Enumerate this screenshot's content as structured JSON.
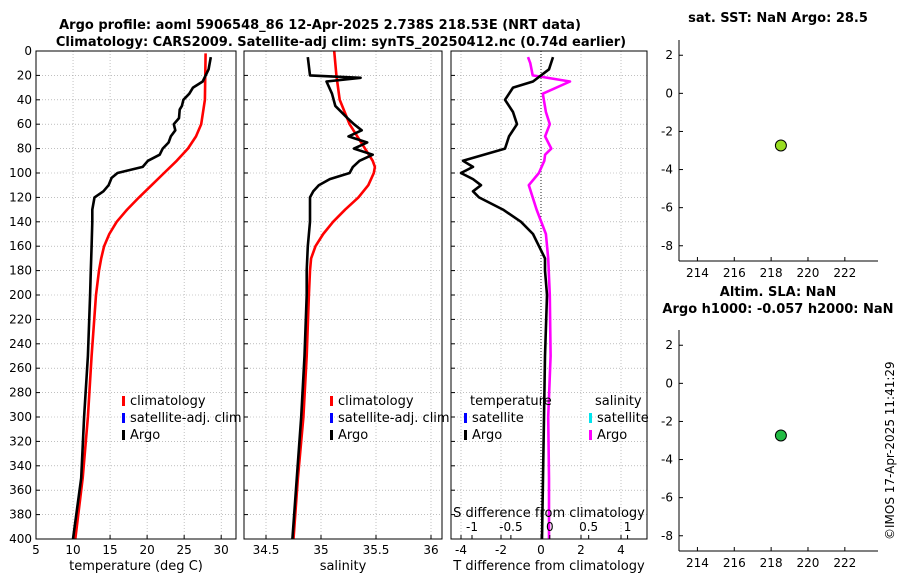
{
  "title": {
    "line1": "Argo profile: aoml 5906548_86 12-Apr-2025 2.738S 218.53E (NRT data)",
    "line2": "Climatology: CARS2009. Satellite-adj clim: synTS_20250412.nc (0.74d earlier)"
  },
  "side_label": "©IMOS 17-Apr-2025 11:41:29",
  "colors": {
    "climatology": "#ff0000",
    "satellite": "#0000ff",
    "argo": "#000000",
    "sal_sat": "#00e5ee",
    "sal_argo": "#ff00ff",
    "dot_sst": "#99dd22",
    "dot_sla": "#22bb44"
  },
  "depth_ticks": [
    "0",
    "20",
    "40",
    "60",
    "80",
    "100",
    "120",
    "140",
    "160",
    "180",
    "200",
    "220",
    "240",
    "260",
    "280",
    "300",
    "320",
    "340",
    "360",
    "380",
    "400"
  ],
  "chart_data": [
    {
      "id": "temperature",
      "type": "line",
      "xlabel": "temperature (deg C)",
      "xlim": [
        5,
        32
      ],
      "ylim": [
        400,
        0
      ],
      "xticks": [
        "5",
        "10",
        "15",
        "20",
        "25",
        "30"
      ],
      "legend": [
        "climatology",
        "satellite-adj. clim",
        "Argo"
      ],
      "series": [
        {
          "name": "climatology",
          "depth": [
            2,
            40,
            60,
            70,
            80,
            90,
            100,
            110,
            120,
            130,
            140,
            150,
            160,
            170,
            180,
            200,
            250,
            300,
            350,
            400
          ],
          "values": [
            27.9,
            27.8,
            27.3,
            26.6,
            25.5,
            24.0,
            22.3,
            20.6,
            18.9,
            17.3,
            15.9,
            14.9,
            14.2,
            13.8,
            13.5,
            13.1,
            12.5,
            12.0,
            11.3,
            10.3
          ]
        },
        {
          "name": "Argo",
          "depth": [
            5,
            15,
            25,
            30,
            35,
            40,
            45,
            48,
            55,
            60,
            65,
            70,
            75,
            80,
            85,
            90,
            95,
            100,
            104,
            110,
            115,
            120,
            130,
            140,
            160,
            180,
            200,
            250,
            300,
            350,
            400
          ],
          "values": [
            28.6,
            28.3,
            27.5,
            26.2,
            25.7,
            24.9,
            24.7,
            24.4,
            24.3,
            23.6,
            23.8,
            23.2,
            22.9,
            22.1,
            21.7,
            20.1,
            19.4,
            16.0,
            15.2,
            14.8,
            14.1,
            12.9,
            12.6,
            12.6,
            12.5,
            12.4,
            12.3,
            12.0,
            11.5,
            11.1,
            10.0
          ]
        }
      ]
    },
    {
      "id": "salinity",
      "type": "line",
      "xlabel": "salinity",
      "xlim": [
        34.3,
        36.1
      ],
      "ylim": [
        400,
        0
      ],
      "xticks": [
        "34.5",
        "35",
        "35.5",
        "36"
      ],
      "legend": [
        "climatology",
        "satellite-adj. clim",
        "Argo"
      ],
      "series": [
        {
          "name": "climatology",
          "depth": [
            0,
            20,
            40,
            60,
            80,
            90,
            95,
            100,
            110,
            120,
            130,
            140,
            150,
            160,
            170,
            180,
            200,
            250,
            300,
            350,
            400
          ],
          "values": [
            35.12,
            35.14,
            35.17,
            35.26,
            35.4,
            35.47,
            35.49,
            35.48,
            35.43,
            35.34,
            35.22,
            35.11,
            35.02,
            34.95,
            34.91,
            34.9,
            34.89,
            34.87,
            34.84,
            34.79,
            34.75
          ]
        },
        {
          "name": "Argo",
          "depth": [
            5,
            20,
            22,
            25,
            35,
            45,
            55,
            60,
            65,
            70,
            75,
            80,
            85,
            90,
            95,
            100,
            105,
            110,
            115,
            120,
            140,
            160,
            180,
            200,
            250,
            300,
            350,
            400
          ],
          "values": [
            34.88,
            34.9,
            35.36,
            35.05,
            35.1,
            35.13,
            35.24,
            35.3,
            35.37,
            35.25,
            35.42,
            35.3,
            35.47,
            35.35,
            35.29,
            35.26,
            35.08,
            34.98,
            34.93,
            34.9,
            34.9,
            34.88,
            34.87,
            34.87,
            34.85,
            34.82,
            34.78,
            34.74
          ]
        }
      ]
    },
    {
      "id": "difference",
      "type": "line",
      "xlabel": "T difference from climatology",
      "x2label": "S difference from climatology",
      "xlim": [
        -4.5,
        5.3
      ],
      "x2lim": [
        -1.27,
        1.25
      ],
      "ylim": [
        400,
        0
      ],
      "xticks": [
        "-4",
        "-2",
        "0",
        "2",
        "4"
      ],
      "x2ticks": [
        "-1",
        "-0.5",
        "0",
        "0.5",
        "1"
      ],
      "legend_T_title": "temperature",
      "legend_S_title": "salinity",
      "legend_T": [
        "satellite",
        "Argo"
      ],
      "legend_S": [
        "satellite",
        "Argo"
      ],
      "series": [
        {
          "name": "T Argo",
          "depth": [
            5,
            15,
            25,
            30,
            40,
            50,
            60,
            70,
            80,
            90,
            95,
            100,
            105,
            110,
            115,
            120,
            130,
            140,
            150,
            160,
            170,
            180,
            200,
            250,
            300,
            350,
            400
          ],
          "values": [
            0.6,
            0.4,
            -0.4,
            -1.4,
            -1.8,
            -1.4,
            -1.2,
            -1.6,
            -1.8,
            -3.9,
            -3.4,
            -4.0,
            -3.4,
            -3.0,
            -3.4,
            -3.1,
            -1.9,
            -1.0,
            -0.4,
            -0.1,
            0.2,
            0.2,
            0.3,
            0.2,
            0.15,
            0.1,
            0.05
          ]
        },
        {
          "name": "S Argo",
          "depth": [
            5,
            10,
            20,
            25,
            35,
            50,
            60,
            70,
            80,
            85,
            90,
            100,
            110,
            130,
            150,
            170,
            200,
            250,
            300,
            350,
            400
          ],
          "values": [
            -0.28,
            -0.25,
            -0.22,
            0.26,
            -0.09,
            -0.05,
            0.0,
            -0.06,
            0.02,
            -0.06,
            -0.07,
            -0.14,
            -0.27,
            -0.17,
            -0.05,
            -0.02,
            0.0,
            0.01,
            -0.02,
            -0.01,
            -0.01
          ]
        }
      ]
    },
    {
      "id": "sst",
      "type": "scatter",
      "title": "sat. SST: NaN Argo: 28.5",
      "xlim": [
        213,
        223.8
      ],
      "ylim": [
        -8.8,
        2.8
      ],
      "xticks": [
        "214",
        "216",
        "218",
        "220",
        "222"
      ],
      "yticks": [
        "2",
        "0",
        "-2",
        "-4",
        "-6",
        "-8"
      ],
      "x": [
        218.53
      ],
      "y": [
        -2.738
      ]
    },
    {
      "id": "sla",
      "type": "scatter",
      "title": "Altim. SLA: NaN",
      "title2": "Argo h1000: -0.057 h2000: NaN",
      "xlim": [
        213,
        223.8
      ],
      "ylim": [
        -8.8,
        2.8
      ],
      "xticks": [
        "214",
        "216",
        "218",
        "220",
        "222"
      ],
      "yticks": [
        "2",
        "0",
        "-2",
        "-4",
        "-6",
        "-8"
      ],
      "x": [
        218.53
      ],
      "y": [
        -2.738
      ]
    }
  ]
}
